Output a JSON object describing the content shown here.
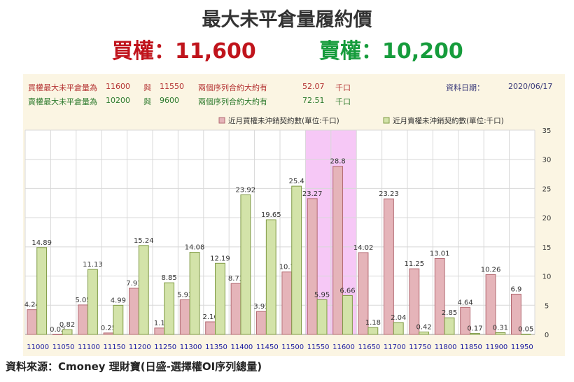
{
  "header": {
    "title": "最大未平倉量履約價",
    "call_text": "買權：11,600",
    "put_text": "賣權：10,200"
  },
  "info": {
    "call_label": "買權最大未平倉量為",
    "call_strike": "11600",
    "and": "與",
    "call_strike2": "11550",
    "contract_label": "兩個序列合約大約有",
    "call_total": "52.07",
    "unit": "千口",
    "put_label": "賣權最大未平倉量為",
    "put_strike": "10200",
    "put_strike2": "9600",
    "put_total": "72.51",
    "date_label": "資料日期：",
    "date_value": "2020/06/17"
  },
  "source": "資料來源：Cmoney 理財寶(日盛-選擇權OI序列總量)",
  "chart_data": {
    "type": "bar",
    "categories": [
      "11000",
      "11050",
      "11100",
      "11150",
      "11200",
      "11250",
      "11300",
      "11350",
      "11400",
      "11450",
      "11500",
      "11550",
      "11600",
      "11650",
      "11700",
      "11750",
      "11800",
      "11850",
      "11900",
      "11950"
    ],
    "series": [
      {
        "name": "近月買權未沖銷契約數(單位:千口)",
        "color": "#e5b4b9",
        "values": [
          4.24,
          0.02,
          5.05,
          0.25,
          7.91,
          1.1,
          5.93,
          2.16,
          8.73,
          3.93,
          10.7,
          23.27,
          28.8,
          14.02,
          23.23,
          11.25,
          13.01,
          4.64,
          10.26,
          6.9
        ]
      },
      {
        "name": "近月賣權未沖銷契約數(單位:千口)",
        "color": "#d3e3a9",
        "values": [
          14.89,
          0.82,
          11.13,
          4.99,
          15.24,
          8.85,
          14.08,
          12.19,
          23.92,
          19.65,
          25.4,
          5.95,
          6.66,
          1.18,
          2.04,
          0.42,
          2.85,
          0.17,
          0.31,
          0.05
        ]
      }
    ],
    "label_texts": [
      [
        "4.24",
        "0.02",
        "5.05",
        "0.25",
        "7.91",
        "1.1",
        "5.93",
        "2.16",
        "8.73",
        "3.93",
        "10.7",
        "23.27",
        "28.8",
        "14.02",
        "23.23",
        "11.25",
        "13.01",
        "4.64",
        "10.26",
        "6.9"
      ],
      [
        "14.89",
        "0.82",
        "11.13",
        "4.99",
        "15.24",
        "8.85",
        "14.08",
        "12.19",
        "23.92",
        "19.65",
        "25.4",
        "5.95",
        "6.66",
        "1.18",
        "2.04",
        "0.42",
        "2.85",
        "0.17",
        "0.31",
        "0.05"
      ]
    ],
    "yticks": [
      "0",
      "5",
      "10",
      "15",
      "20",
      "25",
      "30",
      "35"
    ],
    "ylim": [
      0,
      35
    ],
    "highlight": [
      "11550",
      "11600"
    ],
    "highlight_color": "#f6c8f6",
    "grid": true,
    "legend": "top-right"
  }
}
